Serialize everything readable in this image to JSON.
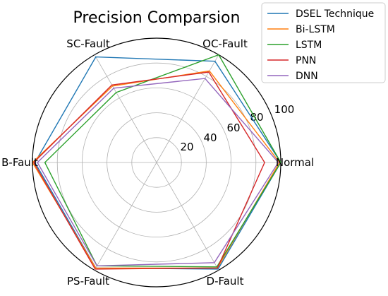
{
  "chart_data": {
    "type": "radar",
    "title": "Precision Comparsion",
    "categories": [
      "Normal",
      "OC-Fault",
      "SC-Fault",
      "B-Fault",
      "PS-Fault",
      "D-Fault"
    ],
    "radial_ticks": [
      20,
      40,
      60,
      80,
      100
    ],
    "rlim": [
      0,
      100
    ],
    "grid": true,
    "legend_position": "top-right",
    "series": [
      {
        "name": "DSEL Technique",
        "color": "#1f77b4",
        "values": [
          100,
          94,
          98,
          98,
          98,
          99
        ]
      },
      {
        "name": "Bi-LSTM",
        "color": "#ff7f0e",
        "values": [
          99,
          85,
          71,
          100,
          98,
          98
        ]
      },
      {
        "name": "LSTM",
        "color": "#2ca02c",
        "values": [
          100,
          100,
          65,
          90,
          96,
          97
        ]
      },
      {
        "name": "PNN",
        "color": "#d62728",
        "values": [
          87,
          84,
          72,
          99,
          99,
          98
        ]
      },
      {
        "name": "DNN",
        "color": "#9467bd",
        "values": [
          98,
          78,
          69,
          96,
          96,
          93
        ]
      }
    ]
  }
}
